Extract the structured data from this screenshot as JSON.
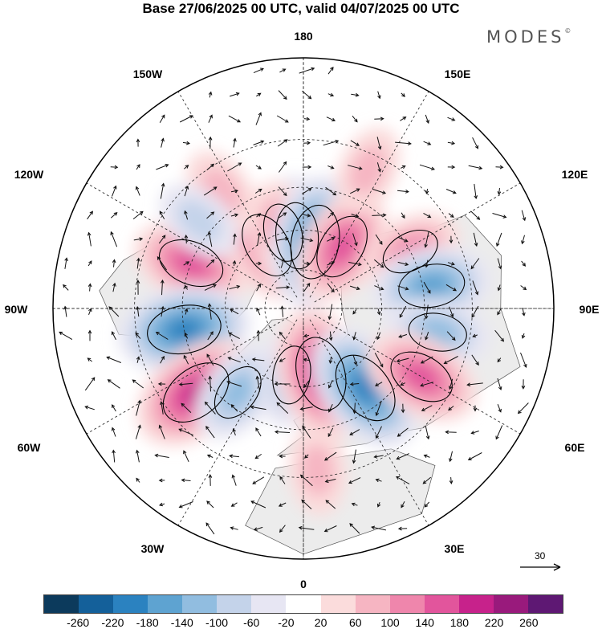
{
  "title": "Base 27/06/2025 00 UTC, valid 04/07/2025 00 UTC",
  "brand": "MODES",
  "brand_mark": "©",
  "longitude_labels": {
    "top": "180",
    "bottom": "0",
    "left": "90W",
    "right": "90E",
    "upper_left_1": "150W",
    "upper_left_2": "120W",
    "upper_right_1": "150E",
    "upper_right_2": "120E",
    "lower_left_1": "60W",
    "lower_left_2": "30W",
    "lower_right_1": "60E",
    "lower_right_2": "30E"
  },
  "vector_scale_label": "30",
  "colorbar": {
    "colors": [
      "#0c3a5c",
      "#14609a",
      "#2b82c0",
      "#5ea3d1",
      "#91bde0",
      "#c4d3ea",
      "#e7e6f3",
      "#ffffff",
      "#fbdcdc",
      "#f6b5c2",
      "#ef86ac",
      "#e2559c",
      "#c7228b",
      "#991a7c",
      "#5e1873"
    ],
    "tick_labels": [
      "-260",
      "-220",
      "-180",
      "-140",
      "-100",
      "-60",
      "-20",
      "20",
      "60",
      "100",
      "140",
      "180",
      "220",
      "260"
    ]
  },
  "anomaly_cells": [
    {
      "sign": "neg",
      "lon": -175,
      "lat": 62,
      "level": 3
    },
    {
      "sign": "pos",
      "lon": -150,
      "lat": 62,
      "level": 3
    },
    {
      "sign": "pos",
      "lon": -165,
      "lat": 60,
      "level": 2
    },
    {
      "sign": "neg",
      "lon": 170,
      "lat": 64,
      "level": 4
    },
    {
      "sign": "pos",
      "lon": 148,
      "lat": 62,
      "level": 3
    },
    {
      "sign": "pos",
      "lon": 118,
      "lat": 45,
      "level": 2
    },
    {
      "sign": "neg",
      "lon": 100,
      "lat": 42,
      "level": 3
    },
    {
      "sign": "neg",
      "lon": 80,
      "lat": 40,
      "level": 2
    },
    {
      "sign": "pos",
      "lon": -112,
      "lat": 45,
      "level": 3
    },
    {
      "sign": "neg",
      "lon": -80,
      "lat": 45,
      "level": 4
    },
    {
      "sign": "pos",
      "lon": -52,
      "lat": 40,
      "level": 4
    },
    {
      "sign": "neg",
      "lon": -38,
      "lat": 50,
      "level": 2
    },
    {
      "sign": "neg",
      "lon": -10,
      "lat": 64,
      "level": 2
    },
    {
      "sign": "pos",
      "lon": 15,
      "lat": 64,
      "level": 4
    },
    {
      "sign": "neg",
      "lon": 38,
      "lat": 52,
      "level": 4
    },
    {
      "sign": "pos",
      "lon": 60,
      "lat": 40,
      "level": 3
    },
    {
      "sign": "pos",
      "lon": 155,
      "lat": 35,
      "level": 1
    },
    {
      "sign": "pos",
      "lon": -145,
      "lat": 38,
      "level": 1
    },
    {
      "sign": "neg",
      "lon": -130,
      "lat": 40,
      "level": 1
    },
    {
      "sign": "pos",
      "lon": 5,
      "lat": 32,
      "level": 1
    }
  ]
}
